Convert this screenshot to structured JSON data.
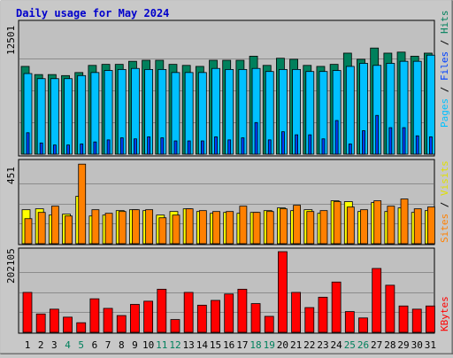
{
  "title": "Daily usage for May 2024",
  "colors": {
    "hits": "#00805c",
    "files": "#00c0ff",
    "pages": "#0040ff",
    "visits": "#ffff00",
    "sites": "#ff8000",
    "kbytes": "#ff0000",
    "title": "#0000cc",
    "weekend_label": "#00805c",
    "weekday_label": "#000000"
  },
  "chart_data": [
    {
      "type": "bar",
      "panel": "hits-files-pages",
      "ylabel_max": "12501",
      "ymax": 12501,
      "legend": {
        "pages": "Pages",
        "files": "Files",
        "hits": "Hits",
        "sep": " / "
      },
      "categories": [
        "1",
        "2",
        "3",
        "4",
        "5",
        "6",
        "7",
        "8",
        "9",
        "10",
        "11",
        "12",
        "13",
        "14",
        "15",
        "16",
        "17",
        "18",
        "19",
        "20",
        "21",
        "22",
        "23",
        "24",
        "25",
        "26",
        "27",
        "28",
        "29",
        "30",
        "31"
      ],
      "weekend": [
        4,
        5,
        11,
        12,
        18,
        19,
        25,
        26
      ],
      "series": [
        {
          "name": "Hits",
          "values": [
            8600,
            7800,
            7800,
            7700,
            8000,
            8700,
            8800,
            8800,
            9100,
            9200,
            9200,
            8800,
            8700,
            8600,
            9200,
            9200,
            9200,
            9600,
            8700,
            9400,
            9300,
            8700,
            8600,
            8800,
            9900,
            9300,
            10400,
            9900,
            10000,
            9600,
            9900
          ]
        },
        {
          "name": "Files",
          "values": [
            7900,
            7400,
            7400,
            7400,
            7700,
            8000,
            8200,
            8300,
            8400,
            8300,
            8300,
            8000,
            8000,
            8000,
            8400,
            8300,
            8300,
            8400,
            8100,
            8300,
            8300,
            8100,
            8100,
            8200,
            8600,
            8900,
            8700,
            8900,
            9100,
            9100,
            9700
          ]
        },
        {
          "name": "Pages",
          "values": [
            2100,
            1100,
            900,
            900,
            1000,
            1200,
            1400,
            1600,
            1500,
            1700,
            1600,
            1300,
            1300,
            1300,
            1700,
            1400,
            1600,
            3100,
            1400,
            2200,
            1900,
            1900,
            1500,
            3300,
            1000,
            2300,
            3800,
            2600,
            2600,
            1800,
            1700
          ]
        }
      ]
    },
    {
      "type": "bar",
      "panel": "visits-sites",
      "ylabel_max": "451",
      "ymax": 451,
      "legend": {
        "sites": "Sites",
        "visits": "Visits",
        "sep": " / "
      },
      "series": [
        {
          "name": "Visits",
          "values": [
            190,
            195,
            160,
            165,
            265,
            155,
            160,
            185,
            190,
            185,
            160,
            180,
            195,
            180,
            170,
            175,
            170,
            175,
            185,
            200,
            185,
            190,
            170,
            240,
            235,
            180,
            230,
            180,
            200,
            175,
            185
          ]
        },
        {
          "name": "Sites",
          "values": [
            140,
            175,
            210,
            155,
            445,
            190,
            170,
            180,
            190,
            190,
            145,
            160,
            195,
            185,
            180,
            180,
            210,
            175,
            180,
            195,
            215,
            180,
            185,
            235,
            205,
            190,
            240,
            210,
            250,
            195,
            205
          ]
        }
      ]
    },
    {
      "type": "bar",
      "panel": "kbytes",
      "ylabel_max": "202105",
      "ymax": 202105,
      "legend": {
        "kbytes": "KBytes"
      },
      "series": [
        {
          "name": "KBytes",
          "values": [
            100000,
            46000,
            58000,
            38000,
            24000,
            84000,
            60000,
            42000,
            70000,
            78000,
            108000,
            32000,
            100000,
            68000,
            80000,
            96000,
            108000,
            72000,
            40000,
            202105,
            100000,
            62000,
            88000,
            126000,
            52000,
            36000,
            160000,
            118000,
            66000,
            58000,
            66000
          ]
        }
      ]
    }
  ]
}
